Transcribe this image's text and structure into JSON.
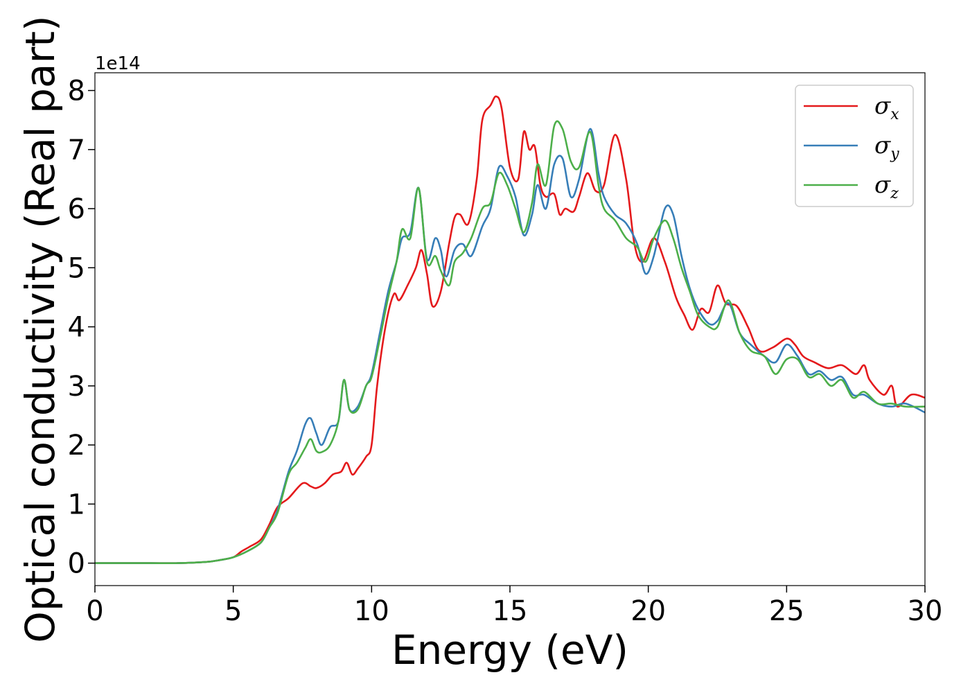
{
  "chart_data": {
    "type": "line",
    "title": "",
    "xlabel": "Energy (eV)",
    "ylabel": "Optical conductivity (Real part)",
    "y_offset_label": "1e14",
    "xlim": [
      0,
      30
    ],
    "ylim": [
      -0.38,
      8.3
    ],
    "x_ticks": [
      0,
      5,
      10,
      15,
      20,
      25,
      30
    ],
    "y_ticks": [
      0,
      1,
      2,
      3,
      4,
      5,
      6,
      7,
      8
    ],
    "grid": false,
    "legend_position": "top-right",
    "series": [
      {
        "name": "σ",
        "subscript": "x",
        "color": "#e41a1c",
        "points": [
          [
            0,
            0
          ],
          [
            1,
            0
          ],
          [
            2,
            0
          ],
          [
            3,
            0
          ],
          [
            4,
            0.02
          ],
          [
            4.5,
            0.05
          ],
          [
            5,
            0.1
          ],
          [
            5.3,
            0.2
          ],
          [
            5.6,
            0.28
          ],
          [
            6,
            0.4
          ],
          [
            6.3,
            0.65
          ],
          [
            6.6,
            0.95
          ],
          [
            7,
            1.1
          ],
          [
            7.5,
            1.35
          ],
          [
            7.8,
            1.3
          ],
          [
            8,
            1.27
          ],
          [
            8.3,
            1.35
          ],
          [
            8.6,
            1.5
          ],
          [
            8.9,
            1.55
          ],
          [
            9.1,
            1.7
          ],
          [
            9.3,
            1.5
          ],
          [
            9.5,
            1.6
          ],
          [
            9.8,
            1.8
          ],
          [
            10,
            2.0
          ],
          [
            10.2,
            3.0
          ],
          [
            10.5,
            4.0
          ],
          [
            10.8,
            4.55
          ],
          [
            11,
            4.45
          ],
          [
            11.3,
            4.7
          ],
          [
            11.6,
            5.0
          ],
          [
            11.8,
            5.3
          ],
          [
            12,
            4.9
          ],
          [
            12.2,
            4.35
          ],
          [
            12.5,
            4.6
          ],
          [
            12.8,
            5.4
          ],
          [
            13,
            5.85
          ],
          [
            13.2,
            5.9
          ],
          [
            13.5,
            5.75
          ],
          [
            13.8,
            6.5
          ],
          [
            14,
            7.5
          ],
          [
            14.3,
            7.75
          ],
          [
            14.5,
            7.9
          ],
          [
            14.7,
            7.7
          ],
          [
            15,
            6.7
          ],
          [
            15.3,
            6.5
          ],
          [
            15.5,
            7.3
          ],
          [
            15.7,
            7.0
          ],
          [
            15.9,
            7.05
          ],
          [
            16.1,
            6.4
          ],
          [
            16.3,
            6.2
          ],
          [
            16.6,
            6.25
          ],
          [
            16.8,
            5.9
          ],
          [
            17,
            6.0
          ],
          [
            17.3,
            5.95
          ],
          [
            17.5,
            6.2
          ],
          [
            17.8,
            6.6
          ],
          [
            18.1,
            6.3
          ],
          [
            18.4,
            6.4
          ],
          [
            18.8,
            7.25
          ],
          [
            19.2,
            6.5
          ],
          [
            19.5,
            5.4
          ],
          [
            19.8,
            5.1
          ],
          [
            20.2,
            5.5
          ],
          [
            20.6,
            5.1
          ],
          [
            21,
            4.5
          ],
          [
            21.3,
            4.2
          ],
          [
            21.6,
            3.95
          ],
          [
            21.9,
            4.3
          ],
          [
            22.2,
            4.25
          ],
          [
            22.5,
            4.7
          ],
          [
            22.8,
            4.4
          ],
          [
            23.2,
            4.35
          ],
          [
            23.6,
            4.0
          ],
          [
            24,
            3.6
          ],
          [
            24.5,
            3.65
          ],
          [
            25,
            3.8
          ],
          [
            25.3,
            3.7
          ],
          [
            25.6,
            3.5
          ],
          [
            26,
            3.4
          ],
          [
            26.5,
            3.3
          ],
          [
            27,
            3.35
          ],
          [
            27.5,
            3.2
          ],
          [
            27.8,
            3.35
          ],
          [
            28,
            3.1
          ],
          [
            28.5,
            2.85
          ],
          [
            28.8,
            3.0
          ],
          [
            29,
            2.65
          ],
          [
            29.5,
            2.85
          ],
          [
            30,
            2.8
          ]
        ]
      },
      {
        "name": "σ",
        "subscript": "y",
        "color": "#377eb8",
        "points": [
          [
            0,
            0
          ],
          [
            1,
            0
          ],
          [
            2,
            0
          ],
          [
            3,
            0
          ],
          [
            4,
            0.02
          ],
          [
            4.5,
            0.05
          ],
          [
            5,
            0.1
          ],
          [
            5.5,
            0.2
          ],
          [
            6,
            0.35
          ],
          [
            6.3,
            0.6
          ],
          [
            6.6,
            0.9
          ],
          [
            7,
            1.55
          ],
          [
            7.3,
            1.9
          ],
          [
            7.6,
            2.35
          ],
          [
            7.8,
            2.45
          ],
          [
            8,
            2.2
          ],
          [
            8.2,
            2.0
          ],
          [
            8.5,
            2.3
          ],
          [
            8.8,
            2.4
          ],
          [
            9,
            3.1
          ],
          [
            9.2,
            2.6
          ],
          [
            9.5,
            2.65
          ],
          [
            9.8,
            3.0
          ],
          [
            10,
            3.2
          ],
          [
            10.3,
            3.9
          ],
          [
            10.6,
            4.6
          ],
          [
            10.9,
            5.1
          ],
          [
            11.1,
            5.5
          ],
          [
            11.4,
            5.6
          ],
          [
            11.7,
            6.35
          ],
          [
            12,
            5.15
          ],
          [
            12.3,
            5.5
          ],
          [
            12.5,
            5.3
          ],
          [
            12.7,
            4.85
          ],
          [
            13,
            5.3
          ],
          [
            13.3,
            5.4
          ],
          [
            13.6,
            5.2
          ],
          [
            14,
            5.7
          ],
          [
            14.3,
            6.0
          ],
          [
            14.6,
            6.7
          ],
          [
            14.9,
            6.55
          ],
          [
            15.2,
            6.2
          ],
          [
            15.5,
            5.55
          ],
          [
            15.8,
            5.9
          ],
          [
            16,
            6.4
          ],
          [
            16.3,
            6.0
          ],
          [
            16.6,
            6.75
          ],
          [
            16.9,
            6.85
          ],
          [
            17.2,
            6.2
          ],
          [
            17.5,
            6.5
          ],
          [
            17.9,
            7.35
          ],
          [
            18.2,
            6.6
          ],
          [
            18.4,
            6.2
          ],
          [
            18.8,
            5.9
          ],
          [
            19.2,
            5.75
          ],
          [
            19.6,
            5.4
          ],
          [
            19.9,
            4.9
          ],
          [
            20.2,
            5.2
          ],
          [
            20.6,
            6.0
          ],
          [
            20.9,
            5.9
          ],
          [
            21.2,
            5.2
          ],
          [
            21.5,
            4.65
          ],
          [
            21.8,
            4.3
          ],
          [
            22.2,
            4.05
          ],
          [
            22.5,
            4.1
          ],
          [
            22.9,
            4.4
          ],
          [
            23.3,
            3.9
          ],
          [
            23.7,
            3.7
          ],
          [
            24.2,
            3.5
          ],
          [
            24.6,
            3.4
          ],
          [
            25,
            3.7
          ],
          [
            25.4,
            3.5
          ],
          [
            25.8,
            3.2
          ],
          [
            26.2,
            3.25
          ],
          [
            26.6,
            3.1
          ],
          [
            27,
            3.15
          ],
          [
            27.4,
            2.85
          ],
          [
            27.8,
            2.85
          ],
          [
            28.3,
            2.7
          ],
          [
            28.8,
            2.65
          ],
          [
            29.3,
            2.7
          ],
          [
            30,
            2.55
          ]
        ]
      },
      {
        "name": "σ",
        "subscript": "z",
        "color": "#4daf4a",
        "points": [
          [
            0,
            0
          ],
          [
            1,
            0
          ],
          [
            2,
            0
          ],
          [
            3,
            0
          ],
          [
            4,
            0.02
          ],
          [
            4.5,
            0.05
          ],
          [
            5,
            0.1
          ],
          [
            5.5,
            0.2
          ],
          [
            6,
            0.35
          ],
          [
            6.3,
            0.6
          ],
          [
            6.6,
            0.85
          ],
          [
            7,
            1.5
          ],
          [
            7.3,
            1.7
          ],
          [
            7.6,
            1.95
          ],
          [
            7.8,
            2.1
          ],
          [
            8,
            1.9
          ],
          [
            8.2,
            1.88
          ],
          [
            8.5,
            2.0
          ],
          [
            8.8,
            2.4
          ],
          [
            9,
            3.1
          ],
          [
            9.2,
            2.6
          ],
          [
            9.5,
            2.6
          ],
          [
            9.8,
            3.0
          ],
          [
            10,
            3.15
          ],
          [
            10.3,
            3.8
          ],
          [
            10.6,
            4.5
          ],
          [
            10.9,
            5.1
          ],
          [
            11.1,
            5.65
          ],
          [
            11.4,
            5.5
          ],
          [
            11.7,
            6.35
          ],
          [
            12,
            5.1
          ],
          [
            12.3,
            5.2
          ],
          [
            12.5,
            4.95
          ],
          [
            12.8,
            4.7
          ],
          [
            13,
            5.1
          ],
          [
            13.3,
            5.25
          ],
          [
            13.6,
            5.5
          ],
          [
            14,
            6.0
          ],
          [
            14.3,
            6.1
          ],
          [
            14.6,
            6.6
          ],
          [
            14.9,
            6.4
          ],
          [
            15.2,
            6.0
          ],
          [
            15.5,
            5.6
          ],
          [
            15.8,
            6.1
          ],
          [
            16,
            6.75
          ],
          [
            16.3,
            6.4
          ],
          [
            16.6,
            7.4
          ],
          [
            16.9,
            7.35
          ],
          [
            17.2,
            6.8
          ],
          [
            17.5,
            6.7
          ],
          [
            17.9,
            7.3
          ],
          [
            18.2,
            6.4
          ],
          [
            18.4,
            6.0
          ],
          [
            18.8,
            5.8
          ],
          [
            19.2,
            5.5
          ],
          [
            19.6,
            5.35
          ],
          [
            19.9,
            5.1
          ],
          [
            20.2,
            5.5
          ],
          [
            20.6,
            5.8
          ],
          [
            20.9,
            5.5
          ],
          [
            21.2,
            5.0
          ],
          [
            21.5,
            4.6
          ],
          [
            21.8,
            4.2
          ],
          [
            22.2,
            4.0
          ],
          [
            22.5,
            4.0
          ],
          [
            22.9,
            4.45
          ],
          [
            23.3,
            3.9
          ],
          [
            23.7,
            3.6
          ],
          [
            24.2,
            3.5
          ],
          [
            24.6,
            3.2
          ],
          [
            25,
            3.45
          ],
          [
            25.4,
            3.45
          ],
          [
            25.8,
            3.15
          ],
          [
            26.2,
            3.2
          ],
          [
            26.6,
            3.0
          ],
          [
            27,
            3.1
          ],
          [
            27.4,
            2.8
          ],
          [
            27.8,
            2.9
          ],
          [
            28.3,
            2.7
          ],
          [
            28.8,
            2.7
          ],
          [
            29.3,
            2.65
          ],
          [
            30,
            2.65
          ]
        ]
      }
    ]
  }
}
